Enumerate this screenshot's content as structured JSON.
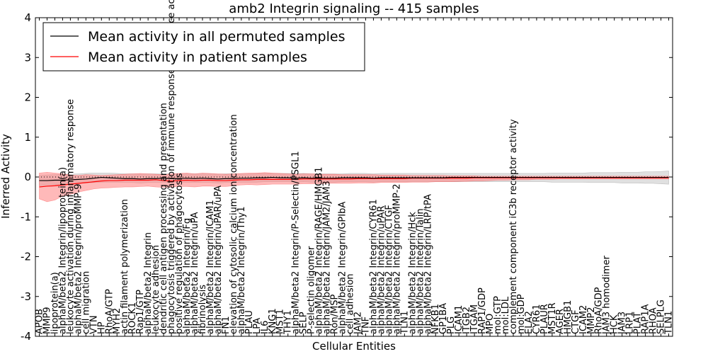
{
  "chart_data": {
    "type": "line",
    "title": "amb2 Integrin signaling -- 415 samples",
    "xlabel": "Cellular Entities",
    "ylabel": "Inferred Activity",
    "ylim": [
      -4,
      4
    ],
    "yticks": [
      -4,
      -3,
      -2,
      -1,
      0,
      1,
      2,
      3,
      4
    ],
    "legend_position": "top-left",
    "categories": [
      "APOB",
      "MMP9",
      "lipoprotein(a)",
      "alphaM/beta2 Integrin/lipoprotein(a)",
      "leukocyte activation during inflammatory response",
      "alphaM/beta2 Integrin/proMMP-9",
      "cell migration",
      "VTN",
      "HP",
      "RhoA/GTP",
      "MYH2",
      "actin filament polymerization",
      "ROCK1",
      "Rap1/GTP",
      "alphaM/beta2 Integrin",
      "leukocyte adhesion",
      "dendritic cell antigen processing and presentation",
      "phagocytosis triggered by activation of immune response cell surface activating receptor",
      "positive regulation of phagocytosis",
      "alphaM/beta2 Integrin/Fg",
      "alphaM/beta2 Integrin/uPA",
      "fibrinolysis",
      "alphaM/beta2 Integrin/ICAM1",
      "alphaM/beta2 Integrin/uPAR/uPA",
      "FN1",
      "elevation of cytosolic calcium ion concentration",
      "alphaM/beta2 Integrin/Thy1",
      "PLAU",
      "LPA",
      "IL6",
      "KNG1",
      "MST1",
      "THY1",
      "alphaM/beta2 Integrin/P-Selectin/PSGL1",
      "SELP",
      "P-selectin oligomer",
      "alphaM/beta2 Integrin/RAGE/HMGB1",
      "alphaM/beta2 Integrin/JAM2/JAM3",
      "Ron/MSP",
      "alphaM/beta2 Integrin/GPIbA",
      "cell adhesion",
      "JAM2",
      "TNF",
      "alphaM/beta2 Integrin/CYR61",
      "alphaM/beta2 Integrin/uPAR",
      "alphaM/beta2 Integrin/CTGF",
      "alphaM/beta2 Integrin/proMMP-2",
      "TLN1",
      "alphaM/beta2 Integrin/Hck",
      "alphaM/beta2 Integrin/Talin",
      "alphaM/beta2 Integrin/LRP/tPA",
      "NFKB1",
      "GP1BA",
      "PLG",
      "ICAM1",
      "ITGB2",
      "ITGAM",
      "RAP1/GDP",
      "MPO",
      "mol:GTP",
      "mol:LDL",
      "complement component iC3b receptor activity",
      "mol:GDP",
      "ELA2",
      "CYR61",
      "PLAUR",
      "MST1R",
      "AGER",
      "HMGB1",
      "CTGF",
      "ICAM2",
      "MMP2",
      "RhoA/GDP",
      "JAM3 homodimer",
      "HCK",
      "JAM3",
      "LRP1",
      "PLAT",
      "RAP1A",
      "RHOA",
      "SELPLG",
      "TLN1"
    ],
    "series": [
      {
        "name": "Mean activity in all permuted samples",
        "color": "#000000",
        "mean": [
          -0.09,
          -0.09,
          -0.08,
          -0.08,
          -0.07,
          -0.06,
          -0.05,
          -0.03,
          -0.01,
          -0.02,
          -0.03,
          -0.04,
          -0.04,
          -0.05,
          -0.04,
          -0.04,
          -0.03,
          -0.04,
          -0.04,
          -0.03,
          -0.04,
          -0.03,
          -0.04,
          -0.05,
          -0.04,
          -0.04,
          -0.03,
          -0.03,
          -0.02,
          -0.02,
          -0.01,
          -0.02,
          -0.02,
          -0.03,
          -0.02,
          -0.03,
          -0.03,
          -0.03,
          -0.03,
          -0.02,
          -0.02,
          -0.02,
          -0.02,
          -0.03,
          -0.02,
          -0.02,
          -0.02,
          -0.02,
          -0.02,
          -0.02,
          -0.02,
          -0.02,
          -0.02,
          -0.01,
          -0.01,
          -0.01,
          -0.01,
          -0.01,
          -0.01,
          -0.01,
          -0.01,
          -0.01,
          -0.01,
          -0.01,
          -0.01,
          -0.01,
          -0.01,
          -0.01,
          -0.01,
          -0.01,
          -0.01,
          -0.01,
          -0.01,
          -0.01,
          -0.01,
          -0.01,
          -0.01,
          -0.01,
          -0.01,
          -0.01,
          -0.01,
          -0.01
        ],
        "lower": [
          -0.22,
          -0.2,
          -0.19,
          -0.18,
          -0.17,
          -0.16,
          -0.15,
          -0.14,
          -0.13,
          -0.13,
          -0.13,
          -0.14,
          -0.14,
          -0.15,
          -0.14,
          -0.14,
          -0.14,
          -0.14,
          -0.14,
          -0.14,
          -0.14,
          -0.14,
          -0.14,
          -0.15,
          -0.14,
          -0.14,
          -0.13,
          -0.13,
          -0.13,
          -0.12,
          -0.12,
          -0.12,
          -0.12,
          -0.13,
          -0.12,
          -0.13,
          -0.13,
          -0.13,
          -0.13,
          -0.12,
          -0.12,
          -0.12,
          -0.12,
          -0.13,
          -0.12,
          -0.12,
          -0.12,
          -0.12,
          -0.12,
          -0.12,
          -0.12,
          -0.12,
          -0.12,
          -0.12,
          -0.12,
          -0.11,
          -0.12,
          -0.12,
          -0.12,
          -0.12,
          -0.12,
          -0.12,
          -0.12,
          -0.12,
          -0.12,
          -0.12,
          -0.13,
          -0.13,
          -0.13,
          -0.13,
          -0.13,
          -0.14,
          -0.14,
          -0.14,
          -0.14,
          -0.15,
          -0.15,
          -0.15,
          -0.16,
          -0.16,
          -0.17,
          -0.18
        ],
        "upper": [
          0.04,
          0.05,
          0.06,
          0.07,
          0.07,
          0.08,
          0.09,
          0.1,
          0.1,
          0.1,
          0.09,
          0.08,
          0.08,
          0.07,
          0.08,
          0.08,
          0.08,
          0.08,
          0.08,
          0.08,
          0.08,
          0.08,
          0.08,
          0.07,
          0.08,
          0.08,
          0.08,
          0.08,
          0.09,
          0.09,
          0.09,
          0.09,
          0.09,
          0.08,
          0.09,
          0.08,
          0.08,
          0.08,
          0.08,
          0.08,
          0.09,
          0.09,
          0.09,
          0.08,
          0.09,
          0.09,
          0.09,
          0.09,
          0.09,
          0.09,
          0.09,
          0.09,
          0.09,
          0.09,
          0.09,
          0.09,
          0.09,
          0.09,
          0.09,
          0.09,
          0.09,
          0.09,
          0.09,
          0.09,
          0.09,
          0.09,
          0.1,
          0.1,
          0.1,
          0.1,
          0.1,
          0.11,
          0.11,
          0.11,
          0.11,
          0.12,
          0.12,
          0.12,
          0.13,
          0.13,
          0.14,
          0.15
        ],
        "band_color": "#bbbbbb"
      },
      {
        "name": "Mean activity in patient samples",
        "color": "#ff0000",
        "mean": [
          -0.25,
          -0.23,
          -0.22,
          -0.2,
          -0.18,
          -0.16,
          -0.14,
          -0.12,
          -0.1,
          -0.09,
          -0.09,
          -0.08,
          -0.08,
          -0.08,
          -0.08,
          -0.07,
          -0.09,
          -0.1,
          -0.09,
          -0.08,
          -0.09,
          -0.08,
          -0.08,
          -0.09,
          -0.09,
          -0.08,
          -0.07,
          -0.07,
          -0.06,
          -0.06,
          -0.06,
          -0.06,
          -0.06,
          -0.06,
          -0.05,
          -0.05,
          -0.05,
          -0.05,
          -0.05,
          -0.05,
          -0.05,
          -0.04,
          -0.04,
          -0.04,
          -0.04,
          -0.04,
          -0.04,
          -0.04,
          -0.03,
          -0.03,
          -0.03,
          -0.03,
          -0.03,
          -0.03,
          -0.03,
          -0.03,
          -0.02,
          -0.02,
          -0.02,
          -0.02,
          -0.02,
          -0.02,
          -0.02,
          -0.02,
          -0.02,
          -0.02,
          -0.02,
          -0.02,
          -0.02,
          -0.02,
          -0.02,
          -0.02,
          -0.02,
          -0.02,
          -0.02,
          -0.02,
          -0.02,
          -0.02,
          -0.02,
          -0.02,
          -0.02,
          -0.02
        ],
        "lower": [
          -0.55,
          -0.62,
          -0.58,
          -0.48,
          -0.44,
          -0.38,
          -0.34,
          -0.3,
          -0.28,
          -0.27,
          -0.26,
          -0.25,
          -0.25,
          -0.24,
          -0.23,
          -0.25,
          -0.26,
          -0.25,
          -0.24,
          -0.24,
          -0.25,
          -0.23,
          -0.23,
          -0.24,
          -0.24,
          -0.22,
          -0.2,
          -0.19,
          -0.2,
          -0.19,
          -0.18,
          -0.18,
          -0.18,
          -0.18,
          -0.17,
          -0.17,
          -0.17,
          -0.16,
          -0.16,
          -0.16,
          -0.16,
          -0.15,
          -0.15,
          -0.15,
          -0.14,
          -0.14,
          -0.14,
          -0.14,
          -0.13,
          -0.13,
          -0.13,
          -0.12,
          -0.12,
          -0.12,
          -0.11,
          -0.11,
          -0.1,
          -0.1,
          -0.09,
          -0.08,
          -0.08,
          -0.07,
          -0.07,
          -0.07,
          -0.06,
          -0.06,
          -0.06,
          -0.05,
          -0.05,
          -0.05,
          -0.05,
          -0.05,
          -0.05,
          -0.05,
          -0.05,
          -0.05,
          -0.05,
          -0.05,
          -0.05,
          -0.05,
          -0.05,
          -0.05
        ],
        "upper": [
          0.1,
          0.12,
          0.1,
          0.08,
          0.05,
          0.04,
          0.06,
          0.05,
          0.04,
          0.05,
          0.06,
          0.07,
          0.08,
          0.09,
          0.08,
          0.07,
          0.06,
          0.08,
          0.09,
          0.1,
          0.08,
          0.1,
          0.09,
          0.08,
          0.07,
          0.08,
          0.09,
          0.1,
          0.1,
          0.11,
          0.1,
          0.09,
          0.08,
          0.07,
          0.08,
          0.08,
          0.07,
          0.07,
          0.07,
          0.06,
          0.06,
          0.06,
          0.06,
          0.06,
          0.05,
          0.05,
          0.05,
          0.05,
          0.04,
          0.04,
          0.04,
          0.04,
          0.04,
          0.03,
          0.03,
          0.03,
          0.03,
          0.02,
          0.02,
          0.02,
          0.02,
          0.02,
          0.02,
          0.02,
          0.02,
          0.02,
          0.02,
          0.02,
          0.02,
          0.02,
          0.02,
          0.02,
          0.02,
          0.02,
          0.02,
          0.02,
          0.02,
          0.02,
          0.02,
          0.02,
          0.02,
          0.02
        ],
        "band_color": "#ff7f7f"
      }
    ],
    "reference_line": {
      "y": 0,
      "style": "dotted",
      "color": "#000000"
    }
  }
}
